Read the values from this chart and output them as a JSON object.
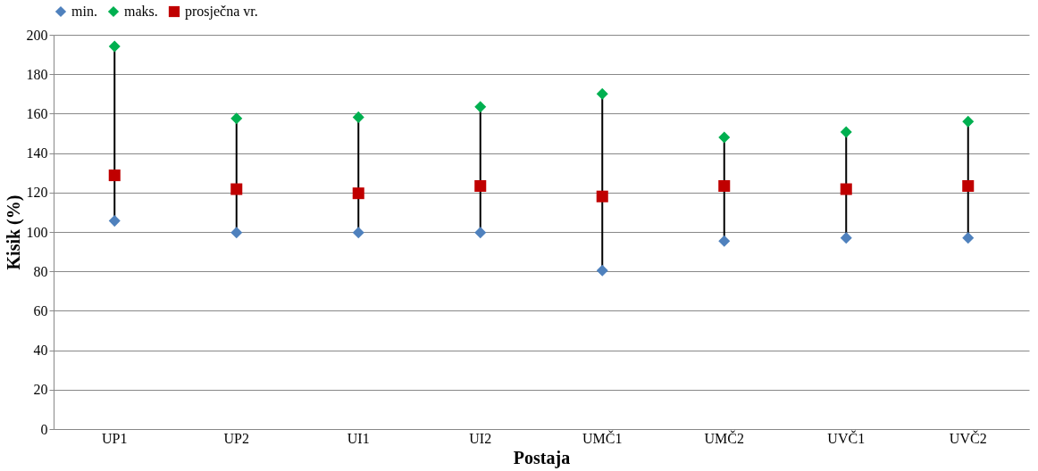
{
  "chart_data": {
    "type": "scatter",
    "xlabel": "Postaja",
    "ylabel": "Kisik (%)",
    "categories": [
      "UP1",
      "UP2",
      "UI1",
      "UI2",
      "UMČ1",
      "UMČ2",
      "UVČ1",
      "UVČ2"
    ],
    "series": [
      {
        "name": "min.",
        "color": "#4f81bd",
        "marker": "diamond",
        "values": [
          105.6,
          99.7,
          99.7,
          99.7,
          80.4,
          95.4,
          97,
          97
        ]
      },
      {
        "name": "maks.",
        "color": "#00b050",
        "marker": "diamond",
        "values": [
          194.1,
          157.6,
          158.2,
          163.5,
          170,
          148,
          150.7,
          156
        ]
      },
      {
        "name": "prosječna vr.",
        "color": "#c00000",
        "marker": "square",
        "values": [
          128.7,
          121.7,
          119.6,
          123.3,
          118,
          123.3,
          121.7,
          123.3
        ]
      }
    ],
    "ylim": [
      0,
      200
    ],
    "yticks": [
      0,
      20,
      40,
      60,
      80,
      100,
      120,
      140,
      160,
      180,
      200
    ],
    "grid": "y",
    "legend": "top"
  }
}
